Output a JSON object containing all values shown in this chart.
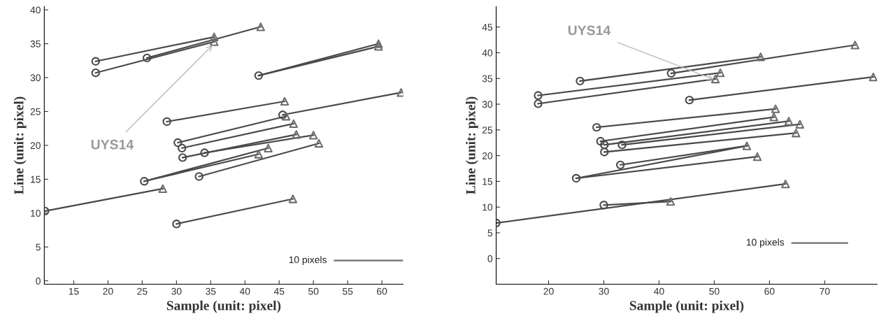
{
  "chart_data": [
    {
      "type": "line",
      "xlabel": "Sample (unit: pixel)",
      "ylabel": "Line (unit: pixel)",
      "xlim": [
        10.7,
        63.1
      ],
      "ylim": [
        -0.5,
        40.5
      ],
      "xticks": [
        15,
        20,
        25,
        30,
        35,
        40,
        45,
        50,
        55,
        60
      ],
      "yticks": [
        0,
        5,
        10,
        15,
        20,
        25,
        30,
        35,
        40
      ],
      "grid": false,
      "annotations": [
        {
          "text": "UYS14",
          "x": 35.5,
          "y": 35.0
        },
        {
          "text": "10 pixels",
          "x": 53.1,
          "y": 3
        }
      ],
      "series": [
        {
          "x": [
            18.2,
            35.5
          ],
          "values": [
            32.4,
            36.0
          ],
          "color": "#4a4a4a"
        },
        {
          "x": [
            18.2,
            35.5
          ],
          "values": [
            30.7,
            35.3
          ],
          "color": "#4a4a4a"
        },
        {
          "x": [
            25.7,
            42.3
          ],
          "values": [
            32.9,
            37.5
          ],
          "color": "#4a4a4a"
        },
        {
          "x": [
            42.0,
            59.5
          ],
          "values": [
            30.3,
            35.0
          ],
          "color": "#4a4a4a"
        },
        {
          "x": [
            42.0,
            59.5
          ],
          "values": [
            30.3,
            34.6
          ],
          "color": "#4a4a4a"
        },
        {
          "x": [
            28.6,
            45.8
          ],
          "values": [
            23.5,
            26.5
          ],
          "color": "#4a4a4a"
        },
        {
          "x": [
            45.5,
            62.8
          ],
          "values": [
            24.5,
            27.8
          ],
          "color": "#4a4a4a"
        },
        {
          "x": [
            30.2,
            46.0
          ],
          "values": [
            20.4,
            24.3
          ],
          "color": "#4a4a4a"
        },
        {
          "x": [
            30.8,
            47.1
          ],
          "values": [
            19.6,
            23.2
          ],
          "color": "#4a4a4a"
        },
        {
          "x": [
            30.9,
            47.5
          ],
          "values": [
            18.2,
            21.6
          ],
          "color": "#4a4a4a"
        },
        {
          "x": [
            34.1,
            50.0
          ],
          "values": [
            18.9,
            21.5
          ],
          "color": "#4a4a4a"
        },
        {
          "x": [
            25.3,
            43.4
          ],
          "values": [
            14.7,
            19.6
          ],
          "color": "#4a4a4a"
        },
        {
          "x": [
            25.3,
            42.0
          ],
          "values": [
            14.7,
            18.7
          ],
          "color": "#4a4a4a"
        },
        {
          "x": [
            33.3,
            50.8
          ],
          "values": [
            15.4,
            20.3
          ],
          "color": "#4a4a4a"
        },
        {
          "x": [
            10.8,
            28.0
          ],
          "values": [
            10.3,
            13.6
          ],
          "color": "#4a4a4a"
        },
        {
          "x": [
            30.0,
            47.0
          ],
          "values": [
            8.4,
            12.1
          ],
          "color": "#4a4a4a"
        },
        {
          "type": "scatter",
          "marker": "circle",
          "color": "#4a4a4a",
          "x": [
            18.2,
            18.2,
            25.7,
            42.0,
            28.6,
            45.5,
            30.2,
            30.8,
            30.9,
            34.1,
            25.3,
            33.3,
            10.8,
            30.0
          ],
          "values": [
            32.4,
            30.7,
            32.9,
            30.3,
            23.5,
            24.5,
            20.4,
            19.6,
            18.2,
            18.9,
            14.7,
            15.4,
            10.3,
            8.4
          ]
        },
        {
          "type": "scatter",
          "marker": "triangle",
          "color": "#6e6e6e",
          "x": [
            35.5,
            35.5,
            42.3,
            59.5,
            59.5,
            45.8,
            62.8,
            46.0,
            47.1,
            47.5,
            50.0,
            43.4,
            42.0,
            50.8,
            28.0,
            47.0
          ],
          "values": [
            36.0,
            35.3,
            37.5,
            35.0,
            34.6,
            26.5,
            27.8,
            24.3,
            23.2,
            21.6,
            21.5,
            19.6,
            18.7,
            20.3,
            13.6,
            12.1
          ]
        },
        {
          "x": [
            53.1,
            63.0
          ],
          "values": [
            3,
            3
          ],
          "color": "#6e6e6e",
          "line_style": "solid"
        }
      ]
    },
    {
      "type": "line",
      "xlabel": "Sample (unit: pixel)",
      "ylabel": "Line (unit: pixel)",
      "xlim": [
        10.5,
        79.5
      ],
      "ylim": [
        -5,
        49
      ],
      "xticks": [
        20,
        30,
        40,
        50,
        60,
        70
      ],
      "yticks": [
        0,
        5,
        10,
        15,
        20,
        25,
        30,
        35,
        40,
        45
      ],
      "grid": false,
      "annotations": [
        {
          "text": "UYS14",
          "x": 50.2,
          "y": 34.7
        },
        {
          "text": "10 pixels",
          "x": 64.1,
          "y": 3
        }
      ],
      "series": [
        {
          "x": [
            25.7,
            58.4
          ],
          "values": [
            34.5,
            39.2
          ],
          "color": "#4a4a4a"
        },
        {
          "x": [
            42.2,
            75.5
          ],
          "values": [
            36.0,
            41.5
          ],
          "color": "#4a4a4a"
        },
        {
          "x": [
            18.1,
            51.1
          ],
          "values": [
            31.7,
            36.1
          ],
          "color": "#4a4a4a"
        },
        {
          "x": [
            18.1,
            50.2
          ],
          "values": [
            30.1,
            34.9
          ],
          "color": "#4a4a4a"
        },
        {
          "x": [
            45.5,
            78.8
          ],
          "values": [
            30.8,
            35.3
          ],
          "color": "#4a4a4a"
        },
        {
          "x": [
            28.7,
            61.1
          ],
          "values": [
            25.5,
            29.1
          ],
          "color": "#4a4a4a"
        },
        {
          "x": [
            29.4,
            60.8
          ],
          "values": [
            22.8,
            27.5
          ],
          "color": "#4a4a4a"
        },
        {
          "x": [
            30.1,
            63.5
          ],
          "values": [
            22.1,
            26.7
          ],
          "color": "#4a4a4a"
        },
        {
          "x": [
            33.3,
            65.5
          ],
          "values": [
            22.1,
            26.1
          ],
          "color": "#4a4a4a"
        },
        {
          "x": [
            30.1,
            64.8
          ],
          "values": [
            20.7,
            24.4
          ],
          "color": "#4a4a4a"
        },
        {
          "x": [
            33.0,
            55.9
          ],
          "values": [
            18.2,
            21.9
          ],
          "color": "#4a4a4a"
        },
        {
          "x": [
            25.0,
            55.9
          ],
          "values": [
            15.6,
            21.9
          ],
          "color": "#4a4a4a"
        },
        {
          "x": [
            25.0,
            57.8
          ],
          "values": [
            15.6,
            19.8
          ],
          "color": "#4a4a4a"
        },
        {
          "x": [
            10.5,
            62.9
          ],
          "values": [
            6.9,
            14.5
          ],
          "color": "#4a4a4a"
        },
        {
          "x": [
            30.0,
            42.1
          ],
          "values": [
            10.4,
            11.1
          ],
          "color": "#4a4a4a"
        },
        {
          "type": "scatter",
          "marker": "circle",
          "color": "#4a4a4a",
          "x": [
            25.7,
            42.2,
            18.1,
            18.1,
            45.5,
            28.7,
            29.4,
            30.1,
            33.3,
            30.1,
            33.0,
            25.0,
            10.5,
            30.0
          ],
          "values": [
            34.5,
            36.0,
            31.7,
            30.1,
            30.8,
            25.5,
            22.8,
            22.1,
            22.1,
            20.7,
            18.2,
            15.6,
            6.9,
            10.4
          ]
        },
        {
          "type": "scatter",
          "marker": "triangle",
          "color": "#6e6e6e",
          "x": [
            58.4,
            75.5,
            51.1,
            50.2,
            78.8,
            61.1,
            60.8,
            63.5,
            65.5,
            64.8,
            55.9,
            57.8,
            62.9,
            42.1
          ],
          "values": [
            39.2,
            41.5,
            36.1,
            34.9,
            35.3,
            29.1,
            27.5,
            26.7,
            26.1,
            24.4,
            21.9,
            19.8,
            14.5,
            11.1
          ]
        },
        {
          "x": [
            64.1,
            74.1
          ],
          "values": [
            3,
            3
          ],
          "color": "#6e6e6e",
          "line_style": "solid"
        }
      ]
    }
  ]
}
